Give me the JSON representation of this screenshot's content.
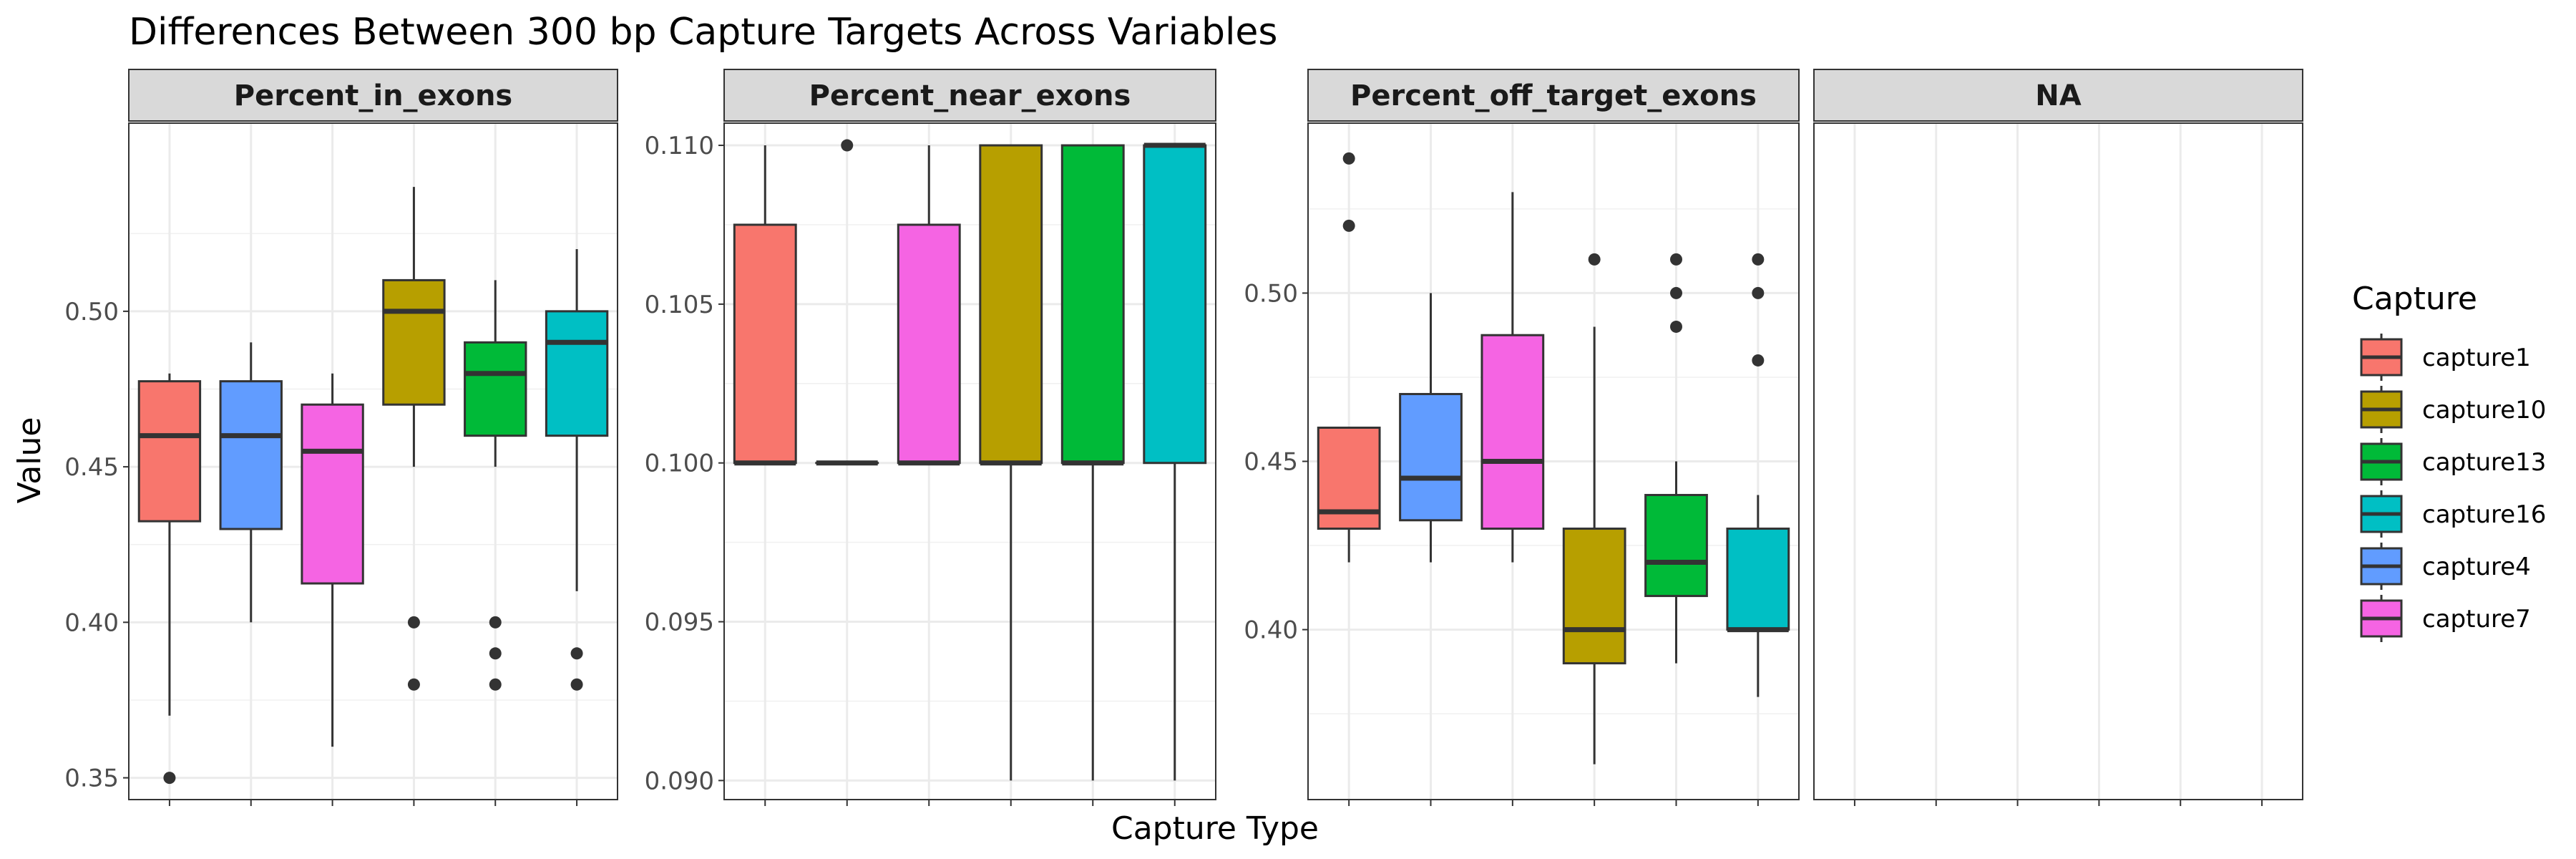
{
  "chart_data": {
    "type": "boxplot",
    "title": "Differences Between 300 bp Capture Targets Across Variables",
    "xlabel": "Capture Type",
    "ylabel": "Value",
    "legend": {
      "title": "Capture",
      "position": "right",
      "entries": [
        {
          "name": "capture1",
          "color": "#F8766D"
        },
        {
          "name": "capture10",
          "color": "#B79F00"
        },
        {
          "name": "capture13",
          "color": "#00BA38"
        },
        {
          "name": "capture16",
          "color": "#00BFC4"
        },
        {
          "name": "capture4",
          "color": "#619CFF"
        },
        {
          "name": "capture7",
          "color": "#F564E3"
        }
      ]
    },
    "x_order": [
      "capture1",
      "capture4",
      "capture7",
      "capture10",
      "capture13",
      "capture16"
    ],
    "facets": [
      {
        "name": "Percent_in_exons",
        "ylim": [
          0.343,
          0.5605
        ],
        "yticks": [
          0.35,
          0.4,
          0.45,
          0.5
        ],
        "yticklabels": [
          "0.35",
          "0.40",
          "0.45",
          "0.50"
        ],
        "boxes": [
          {
            "capture": "capture1",
            "whisker_low": 0.37,
            "q1": 0.4325,
            "median": 0.46,
            "q3": 0.4775,
            "whisker_high": 0.48,
            "outliers": [
              0.35
            ]
          },
          {
            "capture": "capture4",
            "whisker_low": 0.4,
            "q1": 0.43,
            "median": 0.46,
            "q3": 0.4775,
            "whisker_high": 0.49,
            "outliers": []
          },
          {
            "capture": "capture7",
            "whisker_low": 0.36,
            "q1": 0.4125,
            "median": 0.455,
            "q3": 0.47,
            "whisker_high": 0.48,
            "outliers": []
          },
          {
            "capture": "capture10",
            "whisker_low": 0.45,
            "q1": 0.47,
            "median": 0.5,
            "q3": 0.51,
            "whisker_high": 0.54,
            "outliers": [
              0.4,
              0.38
            ]
          },
          {
            "capture": "capture13",
            "whisker_low": 0.45,
            "q1": 0.46,
            "median": 0.48,
            "q3": 0.49,
            "whisker_high": 0.51,
            "outliers": [
              0.4,
              0.39,
              0.38
            ]
          },
          {
            "capture": "capture16",
            "whisker_low": 0.41,
            "q1": 0.46,
            "median": 0.49,
            "q3": 0.5,
            "whisker_high": 0.52,
            "outliers": [
              0.39,
              0.38
            ]
          }
        ]
      },
      {
        "name": "Percent_near_exons",
        "ylim": [
          0.0894,
          0.1107
        ],
        "yticks": [
          0.09,
          0.095,
          0.1,
          0.105,
          0.11
        ],
        "yticklabels": [
          "0.090",
          "0.095",
          "0.100",
          "0.105",
          "0.110"
        ],
        "boxes": [
          {
            "capture": "capture1",
            "whisker_low": 0.1,
            "q1": 0.1,
            "median": 0.1,
            "q3": 0.1075,
            "whisker_high": 0.11,
            "outliers": []
          },
          {
            "capture": "capture4",
            "whisker_low": 0.1,
            "q1": 0.1,
            "median": 0.1,
            "q3": 0.1,
            "whisker_high": 0.1,
            "outliers": [
              0.11
            ]
          },
          {
            "capture": "capture7",
            "whisker_low": 0.1,
            "q1": 0.1,
            "median": 0.1,
            "q3": 0.1075,
            "whisker_high": 0.11,
            "outliers": []
          },
          {
            "capture": "capture10",
            "whisker_low": 0.09,
            "q1": 0.1,
            "median": 0.1,
            "q3": 0.11,
            "whisker_high": 0.11,
            "outliers": []
          },
          {
            "capture": "capture13",
            "whisker_low": 0.09,
            "q1": 0.1,
            "median": 0.1,
            "q3": 0.11,
            "whisker_high": 0.11,
            "outliers": []
          },
          {
            "capture": "capture16",
            "whisker_low": 0.09,
            "q1": 0.1,
            "median": 0.11,
            "q3": 0.11,
            "whisker_high": 0.11,
            "outliers": []
          }
        ]
      },
      {
        "name": "Percent_off_target_exons",
        "ylim": [
          0.3495,
          0.5505
        ],
        "yticks": [
          0.4,
          0.45,
          0.5
        ],
        "yticklabels": [
          "0.40",
          "0.45",
          "0.50"
        ],
        "boxes": [
          {
            "capture": "capture1",
            "whisker_low": 0.42,
            "q1": 0.43,
            "median": 0.435,
            "q3": 0.46,
            "whisker_high": 0.46,
            "outliers": [
              0.54,
              0.52
            ]
          },
          {
            "capture": "capture4",
            "whisker_low": 0.42,
            "q1": 0.4325,
            "median": 0.445,
            "q3": 0.47,
            "whisker_high": 0.5,
            "outliers": []
          },
          {
            "capture": "capture7",
            "whisker_low": 0.42,
            "q1": 0.43,
            "median": 0.45,
            "q3": 0.4875,
            "whisker_high": 0.53,
            "outliers": []
          },
          {
            "capture": "capture10",
            "whisker_low": 0.36,
            "q1": 0.39,
            "median": 0.4,
            "q3": 0.43,
            "whisker_high": 0.49,
            "outliers": [
              0.51
            ]
          },
          {
            "capture": "capture13",
            "whisker_low": 0.39,
            "q1": 0.41,
            "median": 0.42,
            "q3": 0.44,
            "whisker_high": 0.45,
            "outliers": [
              0.51,
              0.5,
              0.49
            ]
          },
          {
            "capture": "capture16",
            "whisker_low": 0.38,
            "q1": 0.4,
            "median": 0.4,
            "q3": 0.43,
            "whisker_high": 0.44,
            "outliers": [
              0.51,
              0.5,
              0.48
            ]
          }
        ]
      },
      {
        "name": "NA",
        "ylim": null,
        "yticks": [],
        "yticklabels": [],
        "boxes": []
      }
    ]
  }
}
